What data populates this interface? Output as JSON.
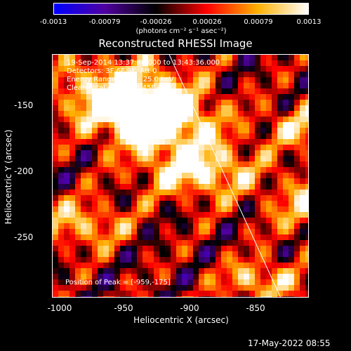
{
  "colorbar": {
    "ticks": [
      "-0.0013",
      "-0.00079",
      "-0.00026",
      "0.00026",
      "0.00079",
      "0.0013"
    ],
    "unit": "(photons cm⁻² s⁻¹ asec⁻²)"
  },
  "chart_data": {
    "type": "heatmap",
    "title": "Reconstructed RHESSI Image",
    "xlabel": "Heliocentric X (arcsec)",
    "ylabel": "Heliocentric Y (arcsec)",
    "xlim": [
      -1000,
      -908
    ],
    "ylim": [
      -297,
      -123
    ],
    "x_ticks": [
      "-1000",
      "-950",
      "-900",
      "-850"
    ],
    "y_ticks": [
      "-150",
      "-200",
      "-250"
    ],
    "annotations": [
      "19-Sep-2014 13:37:48.000 to 13:43:36.000",
      "Detectors: 3F 6F 9F, Att 0",
      "Energy Range: 12.0 - 25.0 keV",
      "Clean    Total counts: 5.45E+03"
    ],
    "peak_label": "Position of Peak = [-959,-175]",
    "peak": [
      -959,
      -175
    ],
    "color_range": [
      -0.0013,
      0.0013
    ],
    "colormap": [
      "#0000ff",
      "#5000a0",
      "#000000",
      "#ff0000",
      "#ffb000",
      "#ffffff"
    ],
    "limb_line": [
      [
        -958,
        -123
      ],
      [
        -918,
        -297
      ]
    ]
  },
  "footer": "17-May-2022 08:55"
}
